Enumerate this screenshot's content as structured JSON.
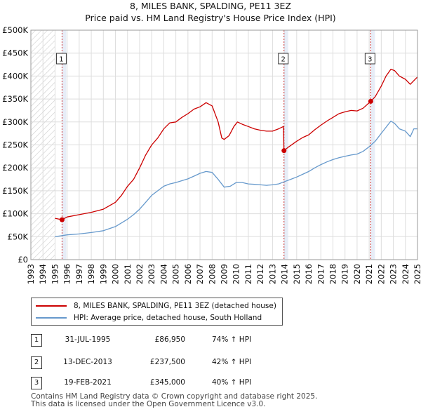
{
  "title": "8, MILES BANK, SPALDING, PE11 3EZ",
  "subtitle": "Price paid vs. HM Land Registry's House Price Index (HPI)",
  "colors": {
    "property": "#cc0000",
    "hpi": "#6699cc",
    "marker_line": "#cc3333",
    "shade": "#dde6f3",
    "grid": "#dddddd"
  },
  "chart_data": {
    "type": "line",
    "xlim": [
      1993,
      2025
    ],
    "ylim": [
      0,
      500000
    ],
    "x_ticks": [
      "1993",
      "1994",
      "1995",
      "1996",
      "1997",
      "1998",
      "1999",
      "2000",
      "2001",
      "2002",
      "2003",
      "2004",
      "2005",
      "2006",
      "2007",
      "2008",
      "2009",
      "2010",
      "2011",
      "2012",
      "2013",
      "2014",
      "2015",
      "2016",
      "2017",
      "2018",
      "2019",
      "2020",
      "2021",
      "2022",
      "2023",
      "2024",
      "2025"
    ],
    "y_ticks": [
      "£0",
      "£50K",
      "£100K",
      "£150K",
      "£200K",
      "£250K",
      "£300K",
      "£350K",
      "£400K",
      "£450K",
      "£500K"
    ],
    "y_tick_values": [
      0,
      50000,
      100000,
      150000,
      200000,
      250000,
      300000,
      350000,
      400000,
      450000,
      500000
    ],
    "data_start": 1995.0,
    "series": [
      {
        "name": "8, MILES BANK, SPALDING, PE11 3EZ (detached house)",
        "color": "#cc0000",
        "points": [
          [
            1995.0,
            90000
          ],
          [
            1995.58,
            86950
          ],
          [
            1996.0,
            93000
          ],
          [
            1997.0,
            98000
          ],
          [
            1998.0,
            103000
          ],
          [
            1999.0,
            110000
          ],
          [
            2000.0,
            125000
          ],
          [
            2000.5,
            140000
          ],
          [
            2001.0,
            160000
          ],
          [
            2001.5,
            175000
          ],
          [
            2002.0,
            200000
          ],
          [
            2002.5,
            228000
          ],
          [
            2003.0,
            250000
          ],
          [
            2003.5,
            265000
          ],
          [
            2004.0,
            285000
          ],
          [
            2004.5,
            298000
          ],
          [
            2005.0,
            300000
          ],
          [
            2005.5,
            310000
          ],
          [
            2006.0,
            318000
          ],
          [
            2006.5,
            328000
          ],
          [
            2007.0,
            333000
          ],
          [
            2007.5,
            342000
          ],
          [
            2008.0,
            335000
          ],
          [
            2008.5,
            300000
          ],
          [
            2008.8,
            265000
          ],
          [
            2009.0,
            262000
          ],
          [
            2009.4,
            270000
          ],
          [
            2009.8,
            290000
          ],
          [
            2010.1,
            300000
          ],
          [
            2010.5,
            295000
          ],
          [
            2011.0,
            290000
          ],
          [
            2011.5,
            285000
          ],
          [
            2012.0,
            282000
          ],
          [
            2012.5,
            280000
          ],
          [
            2013.0,
            280000
          ],
          [
            2013.5,
            285000
          ],
          [
            2013.9,
            290000
          ],
          [
            2013.95,
            237500
          ],
          [
            2014.3,
            245000
          ],
          [
            2015.0,
            258000
          ],
          [
            2015.5,
            266000
          ],
          [
            2016.0,
            272000
          ],
          [
            2016.5,
            283000
          ],
          [
            2017.0,
            293000
          ],
          [
            2017.5,
            302000
          ],
          [
            2018.0,
            310000
          ],
          [
            2018.5,
            318000
          ],
          [
            2019.0,
            322000
          ],
          [
            2019.5,
            325000
          ],
          [
            2020.0,
            324000
          ],
          [
            2020.5,
            330000
          ],
          [
            2021.13,
            345000
          ],
          [
            2021.5,
            355000
          ],
          [
            2022.0,
            378000
          ],
          [
            2022.4,
            400000
          ],
          [
            2022.8,
            415000
          ],
          [
            2023.1,
            412000
          ],
          [
            2023.5,
            400000
          ],
          [
            2024.0,
            393000
          ],
          [
            2024.4,
            382000
          ],
          [
            2024.7,
            390000
          ],
          [
            2025.0,
            398000
          ]
        ]
      },
      {
        "name": "HPI: Average price, detached house, South Holland",
        "color": "#6699cc",
        "points": [
          [
            1995.0,
            50000
          ],
          [
            1995.5,
            52000
          ],
          [
            1996.0,
            54000
          ],
          [
            1997.0,
            56000
          ],
          [
            1998.0,
            59000
          ],
          [
            1999.0,
            63000
          ],
          [
            2000.0,
            72000
          ],
          [
            2000.5,
            80000
          ],
          [
            2001.0,
            88000
          ],
          [
            2001.5,
            98000
          ],
          [
            2002.0,
            110000
          ],
          [
            2002.5,
            125000
          ],
          [
            2003.0,
            140000
          ],
          [
            2003.5,
            150000
          ],
          [
            2004.0,
            160000
          ],
          [
            2004.5,
            165000
          ],
          [
            2005.0,
            168000
          ],
          [
            2005.5,
            172000
          ],
          [
            2006.0,
            176000
          ],
          [
            2006.5,
            182000
          ],
          [
            2007.0,
            188000
          ],
          [
            2007.5,
            192000
          ],
          [
            2008.0,
            190000
          ],
          [
            2008.5,
            175000
          ],
          [
            2009.0,
            158000
          ],
          [
            2009.5,
            160000
          ],
          [
            2010.0,
            168000
          ],
          [
            2010.5,
            168000
          ],
          [
            2011.0,
            165000
          ],
          [
            2011.5,
            164000
          ],
          [
            2012.0,
            163000
          ],
          [
            2012.5,
            162000
          ],
          [
            2013.0,
            163000
          ],
          [
            2013.5,
            165000
          ],
          [
            2014.0,
            170000
          ],
          [
            2014.5,
            175000
          ],
          [
            2015.0,
            180000
          ],
          [
            2015.5,
            186000
          ],
          [
            2016.0,
            192000
          ],
          [
            2016.5,
            200000
          ],
          [
            2017.0,
            207000
          ],
          [
            2017.5,
            213000
          ],
          [
            2018.0,
            218000
          ],
          [
            2018.5,
            222000
          ],
          [
            2019.0,
            225000
          ],
          [
            2019.5,
            228000
          ],
          [
            2020.0,
            230000
          ],
          [
            2020.5,
            236000
          ],
          [
            2021.0,
            246000
          ],
          [
            2021.5,
            258000
          ],
          [
            2022.0,
            275000
          ],
          [
            2022.5,
            292000
          ],
          [
            2022.8,
            302000
          ],
          [
            2023.1,
            297000
          ],
          [
            2023.5,
            285000
          ],
          [
            2024.0,
            280000
          ],
          [
            2024.4,
            268000
          ],
          [
            2024.7,
            285000
          ],
          [
            2025.0,
            285000
          ]
        ]
      }
    ],
    "sales": [
      {
        "num": "1",
        "x": 1995.58,
        "price": 86950
      },
      {
        "num": "2",
        "x": 2013.95,
        "price": 237500
      },
      {
        "num": "3",
        "x": 2021.13,
        "price": 345000
      }
    ]
  },
  "legend": {
    "property_label": "8, MILES BANK, SPALDING, PE11 3EZ (detached house)",
    "hpi_label": "HPI: Average price, detached house, South Holland"
  },
  "annotations": [
    {
      "num": "1",
      "date": "31-JUL-1995",
      "price": "£86,950",
      "hpi": "74% ↑ HPI"
    },
    {
      "num": "2",
      "date": "13-DEC-2013",
      "price": "£237,500",
      "hpi": "42% ↑ HPI"
    },
    {
      "num": "3",
      "date": "19-FEB-2021",
      "price": "£345,000",
      "hpi": "40% ↑ HPI"
    }
  ],
  "footer": {
    "line1": "Contains HM Land Registry data © Crown copyright and database right 2025.",
    "line2": "This data is licensed under the Open Government Licence v3.0."
  }
}
